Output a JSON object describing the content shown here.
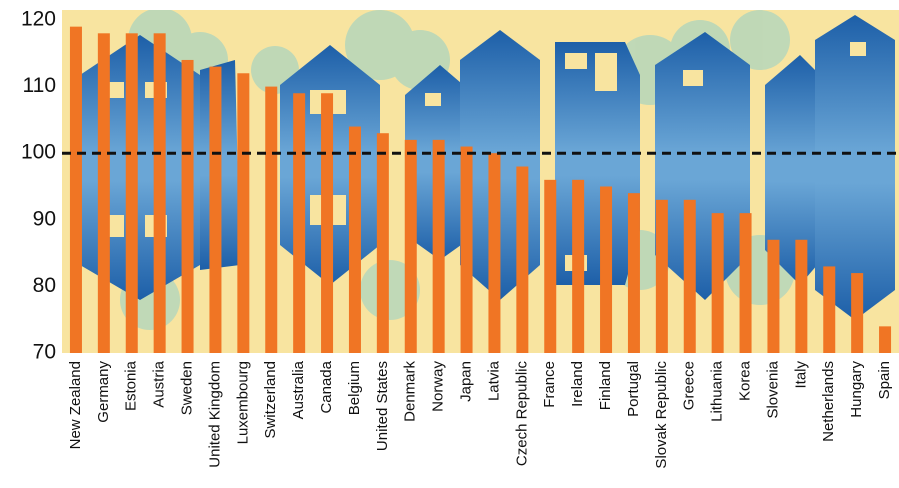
{
  "chart_data": {
    "type": "bar",
    "categories": [
      "New Zealand",
      "Germany",
      "Estonia",
      "Austria",
      "Sweden",
      "United Kingdom",
      "Luxembourg",
      "Switzerland",
      "Australia",
      "Canada",
      "Belgium",
      "United States",
      "Denmark",
      "Norway",
      "Japan",
      "Latvia",
      "Czech Republic",
      "France",
      "Ireland",
      "Finland",
      "Portugal",
      "Slovak Republic",
      "Greece",
      "Lithuania",
      "Korea",
      "Slovenia",
      "Italy",
      "Netherlands",
      "Hungary",
      "Spain"
    ],
    "values": [
      119,
      118,
      118,
      118,
      114,
      113,
      112,
      110,
      109,
      109,
      104,
      103,
      102,
      102,
      101,
      100,
      98,
      96,
      96,
      95,
      94,
      93,
      93,
      91,
      91,
      87,
      87,
      83,
      82,
      74
    ],
    "color": "#f07524",
    "ylim": [
      70,
      121.5
    ],
    "yticks": [
      70,
      80,
      90,
      100,
      110,
      120
    ],
    "reference_line": 100
  }
}
